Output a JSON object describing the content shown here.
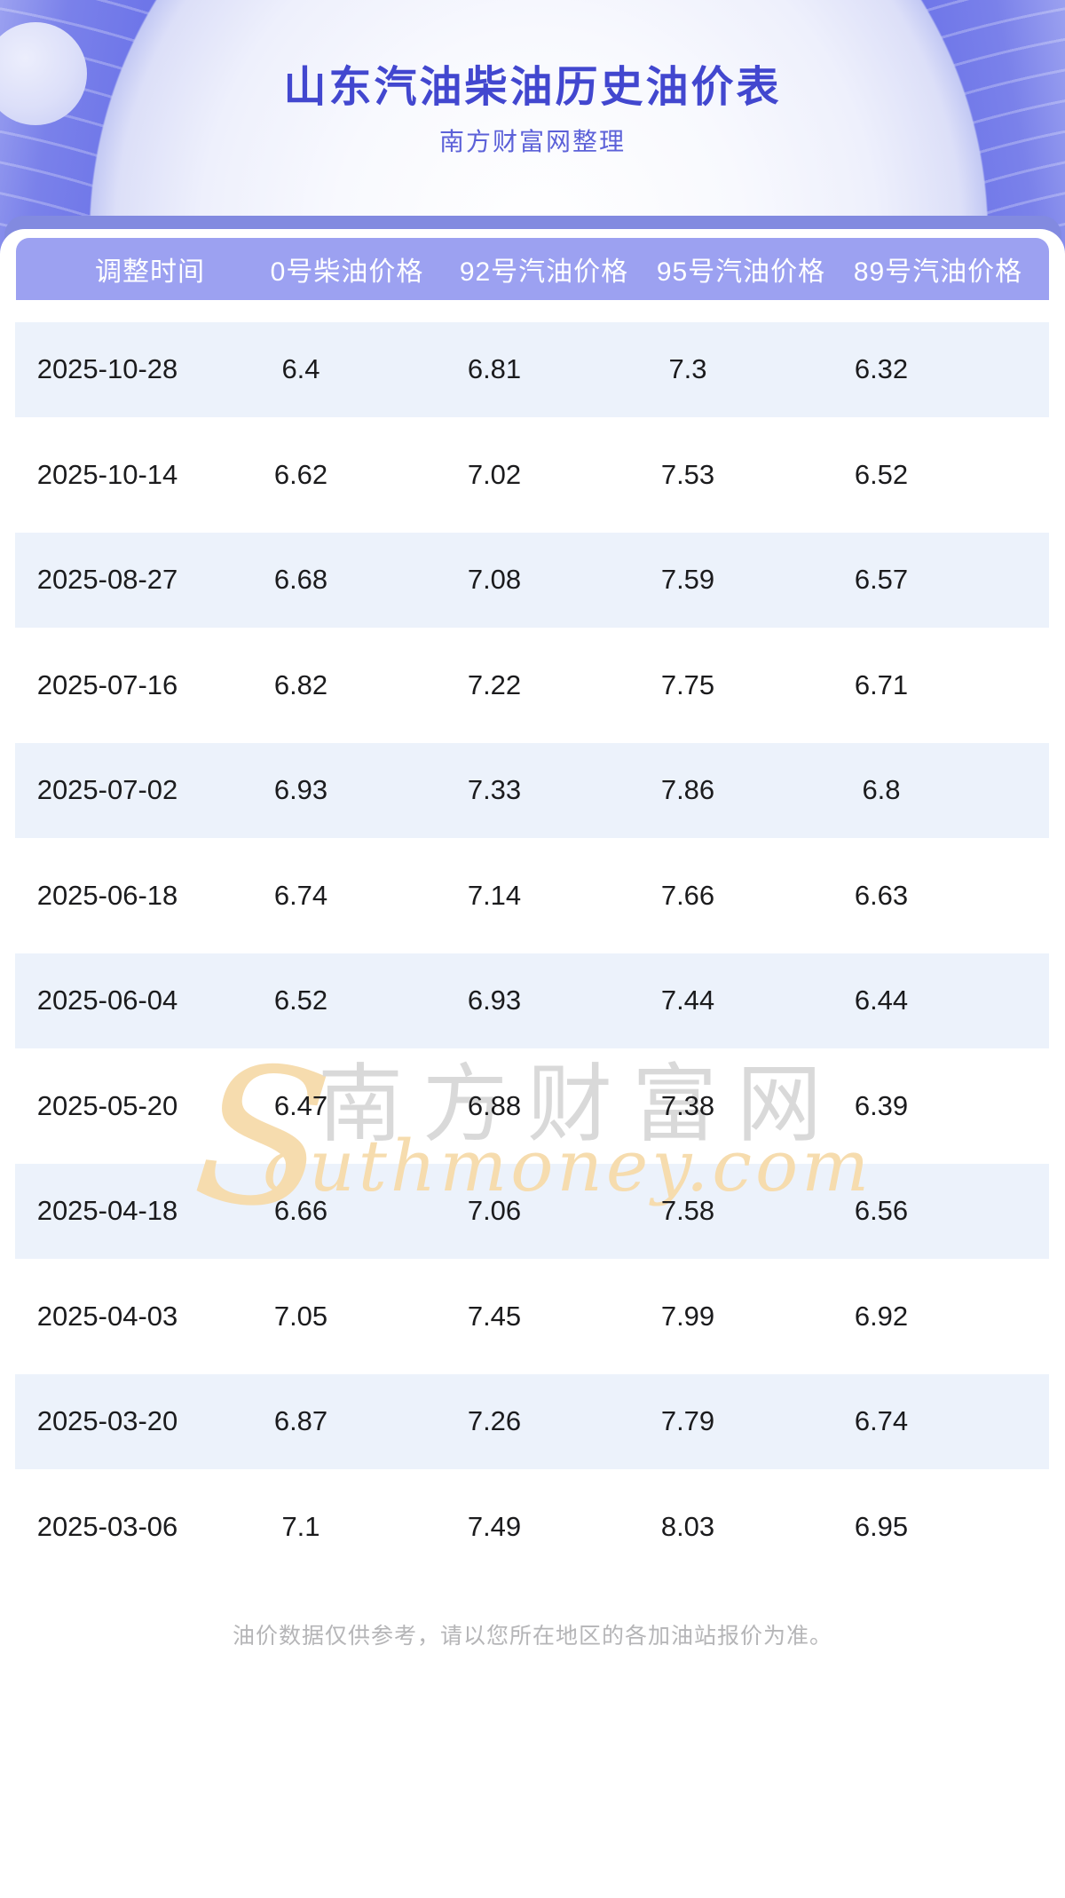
{
  "page": {
    "title": "山东汽油柴油历史油价表",
    "subtitle": "南方财富网整理",
    "footer_note": "油价数据仅供参考，请以您所在地区的各加油站报价为准。"
  },
  "watermark": {
    "cn": "南方财富网",
    "en_initial": "S",
    "en_rest": "outhmoney.com",
    "en_full": "Southmoney.com"
  },
  "table": {
    "columns": [
      "调整时间",
      "0号柴油价格",
      "92号汽油价格",
      "95号汽油价格",
      "89号汽油价格"
    ],
    "rows": [
      [
        "2025-10-28",
        "6.4",
        "6.81",
        "7.3",
        "6.32"
      ],
      [
        "2025-10-14",
        "6.62",
        "7.02",
        "7.53",
        "6.52"
      ],
      [
        "2025-08-27",
        "6.68",
        "7.08",
        "7.59",
        "6.57"
      ],
      [
        "2025-07-16",
        "6.82",
        "7.22",
        "7.75",
        "6.71"
      ],
      [
        "2025-07-02",
        "6.93",
        "7.33",
        "7.86",
        "6.8"
      ],
      [
        "2025-06-18",
        "6.74",
        "7.14",
        "7.66",
        "6.63"
      ],
      [
        "2025-06-04",
        "6.52",
        "6.93",
        "7.44",
        "6.44"
      ],
      [
        "2025-05-20",
        "6.47",
        "6.88",
        "7.38",
        "6.39"
      ],
      [
        "2025-04-18",
        "6.66",
        "7.06",
        "7.58",
        "6.56"
      ],
      [
        "2025-04-03",
        "7.05",
        "7.45",
        "7.99",
        "6.92"
      ],
      [
        "2025-03-20",
        "6.87",
        "7.26",
        "7.79",
        "6.74"
      ],
      [
        "2025-03-06",
        "7.1",
        "7.49",
        "8.03",
        "6.95"
      ]
    ]
  },
  "colors": {
    "title": "#4247cf",
    "subtitle": "#5c61d8",
    "band": "#828ae0",
    "thead": "#9ca1f1",
    "rowalt": "#ecf2fb",
    "arcs": "#6a72e8",
    "wm-orange": "#f6dcae",
    "wm-gray": "#d9d9d9",
    "footer": "#b5b5b7"
  }
}
